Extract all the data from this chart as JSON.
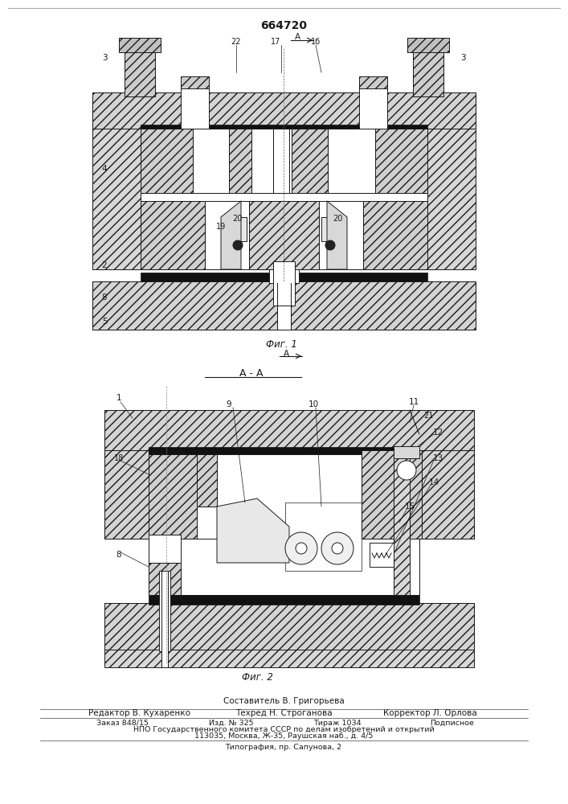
{
  "title": "664720",
  "fig1_label": "Фиг. 1",
  "fig2_label": "Фиг. 2",
  "section_label": "А - А",
  "footer_line1": "Составитель В. Григорьева",
  "footer_line2_col1": "Редактор В. Кухаренко",
  "footer_line2_col2": "Техред Н. Строганова",
  "footer_line2_col3": "Корректор Л. Орлова",
  "footer_line3a": "Заказ 848/15",
  "footer_line3b": "Изд. № 325",
  "footer_line3c": "Тираж 1034",
  "footer_line3d": "Подписное",
  "footer_line4": "НПО Государственного комитета СССР по делам изобретений и открытий",
  "footer_line5": "113035, Москва, Ж-35, Раушская наб., д. 4/5",
  "footer_line6": "Типография, пр. Сапунова, 2"
}
